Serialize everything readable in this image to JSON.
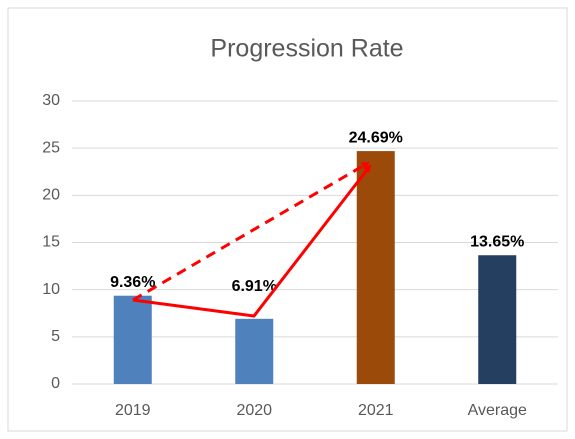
{
  "chart_data": {
    "type": "bar",
    "title": "Progression Rate",
    "categories": [
      "2019",
      "2020",
      "2021",
      "Average"
    ],
    "values": [
      9.36,
      6.91,
      24.69,
      13.65
    ],
    "value_labels": [
      "9.36%",
      "6.91%",
      "24.69%",
      "13.65%"
    ],
    "colors": [
      "#4f81bd",
      "#4f81bd",
      "#9c4a0a",
      "#243f60"
    ],
    "ylim": [
      0,
      30
    ],
    "yticks": [
      0,
      5,
      10,
      15,
      20,
      25,
      30
    ],
    "grid": true
  }
}
